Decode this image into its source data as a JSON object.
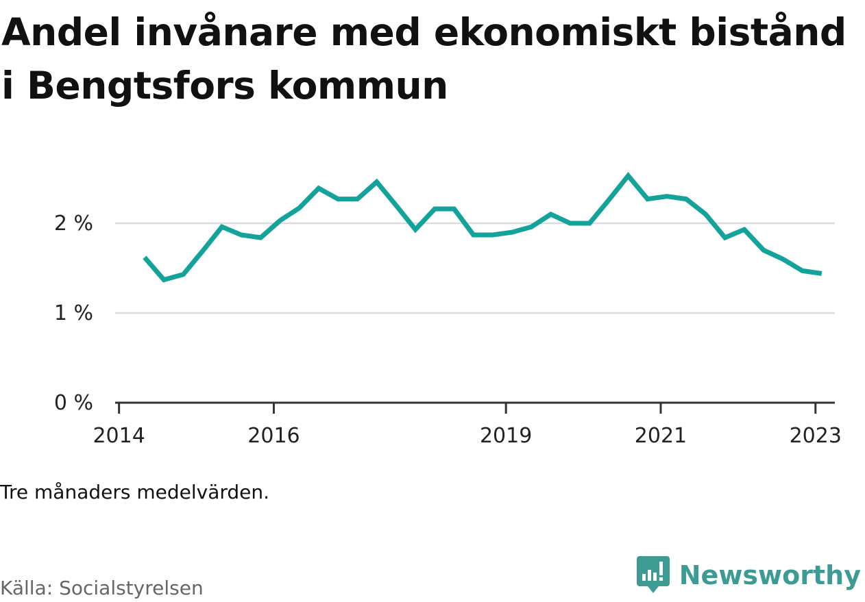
{
  "title": "Andel invånare med ekonomiskt bistånd i Bengtsfors kommun",
  "note": "Tre månaders medelvärden.",
  "source": "Källa: Socialstyrelsen",
  "brand": {
    "name": "Newsworthy",
    "logo_icon": "newsworthy-chart-bubble-icon",
    "color": "#3e9b93"
  },
  "colors": {
    "line": "#14a39a",
    "grid": "#dcdcdc",
    "axis": "#333333"
  },
  "chart_data": {
    "type": "line",
    "title": "Andel invånare med ekonomiskt bistånd i Bengtsfors kommun",
    "xlabel": "",
    "ylabel": "",
    "ylim": [
      0,
      3.0
    ],
    "yticks": [
      0,
      1,
      2
    ],
    "ytick_labels": [
      "0 %",
      "1 %",
      "2 %"
    ],
    "xlim": [
      2013.95,
      2023.25
    ],
    "xticks": [
      2014,
      2016,
      2019,
      2021,
      2023
    ],
    "xtick_labels": [
      "2014",
      "2016",
      "2019",
      "2021",
      "2023"
    ],
    "grid": true,
    "series": [
      {
        "values": [
          {
            "x": 2014.33,
            "y": 1.62
          },
          {
            "x": 2014.58,
            "y": 1.37
          },
          {
            "x": 2014.83,
            "y": 1.43
          },
          {
            "x": 2015.08,
            "y": 1.69
          },
          {
            "x": 2015.33,
            "y": 1.96
          },
          {
            "x": 2015.58,
            "y": 1.87
          },
          {
            "x": 2015.83,
            "y": 1.84
          },
          {
            "x": 2016.08,
            "y": 2.03
          },
          {
            "x": 2016.33,
            "y": 2.17
          },
          {
            "x": 2016.58,
            "y": 2.39
          },
          {
            "x": 2016.83,
            "y": 2.27
          },
          {
            "x": 2017.08,
            "y": 2.27
          },
          {
            "x": 2017.33,
            "y": 2.46
          },
          {
            "x": 2017.58,
            "y": 2.2
          },
          {
            "x": 2017.83,
            "y": 1.93
          },
          {
            "x": 2018.08,
            "y": 2.16
          },
          {
            "x": 2018.33,
            "y": 2.16
          },
          {
            "x": 2018.58,
            "y": 1.87
          },
          {
            "x": 2018.83,
            "y": 1.87
          },
          {
            "x": 2019.08,
            "y": 1.9
          },
          {
            "x": 2019.33,
            "y": 1.96
          },
          {
            "x": 2019.58,
            "y": 2.1
          },
          {
            "x": 2019.83,
            "y": 2.0
          },
          {
            "x": 2020.08,
            "y": 2.0
          },
          {
            "x": 2020.33,
            "y": 2.26
          },
          {
            "x": 2020.58,
            "y": 2.53
          },
          {
            "x": 2020.83,
            "y": 2.27
          },
          {
            "x": 2021.08,
            "y": 2.3
          },
          {
            "x": 2021.33,
            "y": 2.27
          },
          {
            "x": 2021.58,
            "y": 2.1
          },
          {
            "x": 2021.83,
            "y": 1.84
          },
          {
            "x": 2022.08,
            "y": 1.93
          },
          {
            "x": 2022.33,
            "y": 1.7
          },
          {
            "x": 2022.58,
            "y": 1.6
          },
          {
            "x": 2022.83,
            "y": 1.47
          },
          {
            "x": 2023.08,
            "y": 1.44
          }
        ]
      }
    ]
  }
}
